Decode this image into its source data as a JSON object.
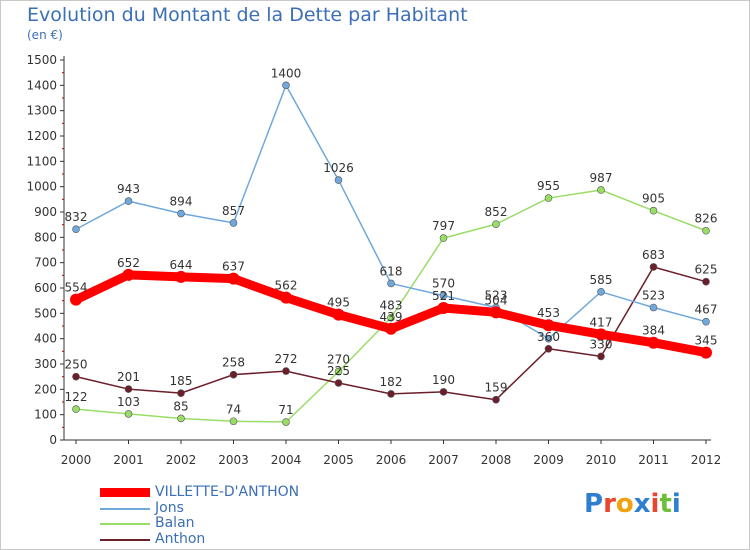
{
  "title": "Evolution du Montant de la Dette par Habitant",
  "subtitle": "(en €)",
  "logo": {
    "letters": [
      "P",
      "r",
      "o",
      "x",
      "i",
      "t",
      "i"
    ],
    "colors": [
      "#2f7fd1",
      "#e8462e",
      "#f2a20c",
      "#2f7fd1",
      "#e8462e",
      "#6cbf3a",
      "#2f7fd1"
    ]
  },
  "chart_data": {
    "type": "line",
    "x": [
      "2000",
      "2001",
      "2002",
      "2003",
      "2004",
      "2005",
      "2006",
      "2007",
      "2008",
      "2009",
      "2010",
      "2011",
      "2012"
    ],
    "ylim": [
      0,
      1500
    ],
    "yticks": [
      0,
      100,
      200,
      300,
      400,
      500,
      600,
      700,
      800,
      900,
      1000,
      1100,
      1200,
      1300,
      1400,
      1500
    ],
    "grid": false,
    "legend_position": "bottom-left",
    "series": [
      {
        "name": "VILLETTE-D'ANTHON",
        "color": "#ff0000",
        "values": [
          554,
          652,
          644,
          637,
          562,
          495,
          439,
          521,
          504,
          453,
          417,
          384,
          345
        ]
      },
      {
        "name": "Jons",
        "color": "#6fa8dc",
        "values": [
          832,
          943,
          894,
          857,
          1400,
          1026,
          618,
          570,
          523,
          400,
          585,
          523,
          467
        ]
      },
      {
        "name": "Balan",
        "color": "#99dd66",
        "values": [
          122,
          103,
          85,
          74,
          71,
          270,
          483,
          797,
          852,
          955,
          987,
          905,
          826
        ]
      },
      {
        "name": "Anthon",
        "color": "#6b1f2a",
        "values": [
          250,
          201,
          185,
          258,
          272,
          225,
          182,
          190,
          159,
          360,
          330,
          683,
          625
        ]
      }
    ],
    "data_labels": {
      "VILLETTE-D'ANTHON": [
        "554",
        "652",
        "644",
        "637",
        "562",
        "495",
        "439",
        "521",
        "504",
        "453",
        "417",
        "384",
        "345"
      ],
      "Jons": [
        "832",
        "943",
        "894",
        "857",
        "1400",
        "1026",
        "618",
        "570",
        "523",
        "",
        "585",
        "523",
        "467"
      ],
      "Balan": [
        "122",
        "103",
        "85",
        "74",
        "71",
        "270",
        "483",
        "797",
        "852",
        "955",
        "987",
        "905",
        "826"
      ],
      "Anthon": [
        "250",
        "201",
        "185",
        "258",
        "272",
        "225",
        "182",
        "190",
        "159",
        "360",
        "330",
        "683",
        "625"
      ]
    }
  }
}
